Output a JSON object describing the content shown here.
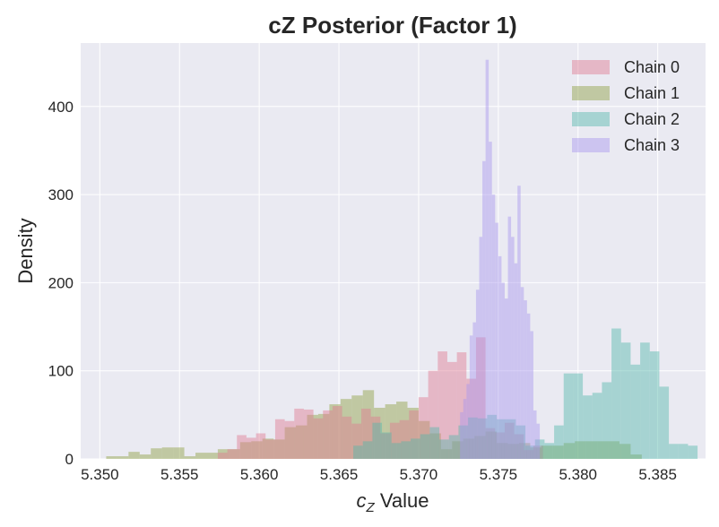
{
  "chart_data": {
    "type": "histogram",
    "title": "cZ Posterior (Factor 1)",
    "xlabel_main": "c",
    "xlabel_sub": "Z",
    "xlabel_rest": " Value",
    "ylabel": "Density",
    "xlim": [
      5.3488,
      5.388
    ],
    "ylim": [
      0,
      472
    ],
    "xticks": [
      5.35,
      5.355,
      5.36,
      5.365,
      5.37,
      5.375,
      5.38,
      5.385
    ],
    "xtick_labels": [
      "5.350",
      "5.355",
      "5.360",
      "5.365",
      "5.370",
      "5.375",
      "5.380",
      "5.385"
    ],
    "yticks": [
      0,
      100,
      200,
      300,
      400
    ],
    "ytick_labels": [
      "0",
      "100",
      "200",
      "300",
      "400"
    ],
    "grid": true,
    "legend_position": "top-right",
    "series": [
      {
        "name": "Chain 1",
        "color": "#8fa040",
        "bins": [
          [
            5.3504,
            3
          ],
          [
            5.3511,
            3
          ],
          [
            5.3518,
            8
          ],
          [
            5.3525,
            5
          ],
          [
            5.3532,
            12
          ],
          [
            5.3539,
            13
          ],
          [
            5.3546,
            13
          ],
          [
            5.3553,
            3
          ],
          [
            5.356,
            7
          ],
          [
            5.3567,
            7
          ],
          [
            5.3574,
            11
          ],
          [
            5.3581,
            11
          ],
          [
            5.3588,
            19
          ],
          [
            5.3595,
            20
          ],
          [
            5.3602,
            23
          ],
          [
            5.3609,
            22
          ],
          [
            5.3616,
            36
          ],
          [
            5.3623,
            38
          ],
          [
            5.363,
            50
          ],
          [
            5.3637,
            51
          ],
          [
            5.3644,
            62
          ],
          [
            5.3651,
            68
          ],
          [
            5.3658,
            72
          ],
          [
            5.3665,
            78
          ],
          [
            5.3672,
            58
          ],
          [
            5.3679,
            62
          ],
          [
            5.3686,
            65
          ],
          [
            5.3693,
            58
          ],
          [
            5.37,
            43
          ],
          [
            5.3707,
            29
          ],
          [
            5.3714,
            11
          ],
          [
            5.3721,
            20
          ],
          [
            5.3728,
            23
          ],
          [
            5.3735,
            26
          ],
          [
            5.3742,
            31
          ],
          [
            5.3749,
            18
          ],
          [
            5.3756,
            17
          ],
          [
            5.3763,
            18
          ],
          [
            5.377,
            13
          ],
          [
            5.3777,
            15
          ],
          [
            5.3784,
            15
          ],
          [
            5.3791,
            18
          ],
          [
            5.3798,
            20
          ],
          [
            5.3805,
            20
          ],
          [
            5.3812,
            20
          ],
          [
            5.3819,
            20
          ],
          [
            5.3826,
            17
          ],
          [
            5.3833,
            5
          ]
        ]
      },
      {
        "name": "Chain 0",
        "color": "#e07b91",
        "bins": [
          [
            5.3574,
            7
          ],
          [
            5.358,
            11
          ],
          [
            5.3586,
            27
          ],
          [
            5.3592,
            24
          ],
          [
            5.3598,
            29
          ],
          [
            5.3604,
            22
          ],
          [
            5.361,
            45
          ],
          [
            5.3616,
            43
          ],
          [
            5.3622,
            57
          ],
          [
            5.3628,
            56
          ],
          [
            5.3634,
            46
          ],
          [
            5.364,
            55
          ],
          [
            5.3646,
            60
          ],
          [
            5.3652,
            48
          ],
          [
            5.3658,
            40
          ],
          [
            5.3664,
            57
          ],
          [
            5.367,
            48
          ],
          [
            5.3676,
            29
          ],
          [
            5.3682,
            41
          ],
          [
            5.3688,
            44
          ],
          [
            5.3694,
            55
          ],
          [
            5.37,
            70
          ],
          [
            5.3706,
            100
          ],
          [
            5.3712,
            122
          ],
          [
            5.3718,
            110
          ],
          [
            5.3724,
            121
          ],
          [
            5.373,
            91
          ],
          [
            5.3736,
            138
          ],
          [
            5.3742,
            35
          ],
          [
            5.3748,
            30
          ],
          [
            5.3754,
            41
          ],
          [
            5.376,
            28
          ],
          [
            5.3766,
            10
          ],
          [
            5.3772,
            15
          ]
        ]
      },
      {
        "name": "Chain 2",
        "color": "#55b7aa",
        "bins": [
          [
            5.3659,
            15
          ],
          [
            5.3665,
            20
          ],
          [
            5.3671,
            41
          ],
          [
            5.3677,
            30
          ],
          [
            5.3683,
            18
          ],
          [
            5.3689,
            20
          ],
          [
            5.3695,
            23
          ],
          [
            5.3701,
            28
          ],
          [
            5.3707,
            36
          ],
          [
            5.3713,
            22
          ],
          [
            5.3719,
            27
          ],
          [
            5.3725,
            38
          ],
          [
            5.3731,
            47
          ],
          [
            5.3737,
            46
          ],
          [
            5.3743,
            50
          ],
          [
            5.3749,
            45
          ],
          [
            5.3755,
            45
          ],
          [
            5.3761,
            38
          ],
          [
            5.3767,
            15
          ],
          [
            5.3773,
            22
          ],
          [
            5.3779,
            18
          ],
          [
            5.3785,
            38
          ],
          [
            5.3791,
            97
          ],
          [
            5.3797,
            97
          ],
          [
            5.3803,
            72
          ],
          [
            5.3809,
            75
          ],
          [
            5.3815,
            87
          ],
          [
            5.3821,
            148
          ],
          [
            5.3827,
            132
          ],
          [
            5.3833,
            107
          ],
          [
            5.3839,
            132
          ],
          [
            5.3845,
            122
          ],
          [
            5.3851,
            82
          ],
          [
            5.3857,
            17
          ],
          [
            5.3863,
            17
          ],
          [
            5.3869,
            15
          ]
        ]
      },
      {
        "name": "Chain 3",
        "color": "#a896ee",
        "bins": [
          [
            5.3726,
            53
          ],
          [
            5.3728,
            68
          ],
          [
            5.373,
            85
          ],
          [
            5.3732,
            140
          ],
          [
            5.3734,
            155
          ],
          [
            5.3736,
            192
          ],
          [
            5.3738,
            252
          ],
          [
            5.374,
            338
          ],
          [
            5.3742,
            453
          ],
          [
            5.3744,
            360
          ],
          [
            5.3746,
            300
          ],
          [
            5.3748,
            268
          ],
          [
            5.375,
            230
          ],
          [
            5.3752,
            200
          ],
          [
            5.3754,
            182
          ],
          [
            5.3756,
            275
          ],
          [
            5.3758,
            252
          ],
          [
            5.376,
            222
          ],
          [
            5.3762,
            310
          ],
          [
            5.3764,
            195
          ],
          [
            5.3766,
            180
          ],
          [
            5.3768,
            165
          ],
          [
            5.377,
            145
          ],
          [
            5.3772,
            55
          ],
          [
            5.3774,
            40
          ]
        ]
      }
    ]
  }
}
